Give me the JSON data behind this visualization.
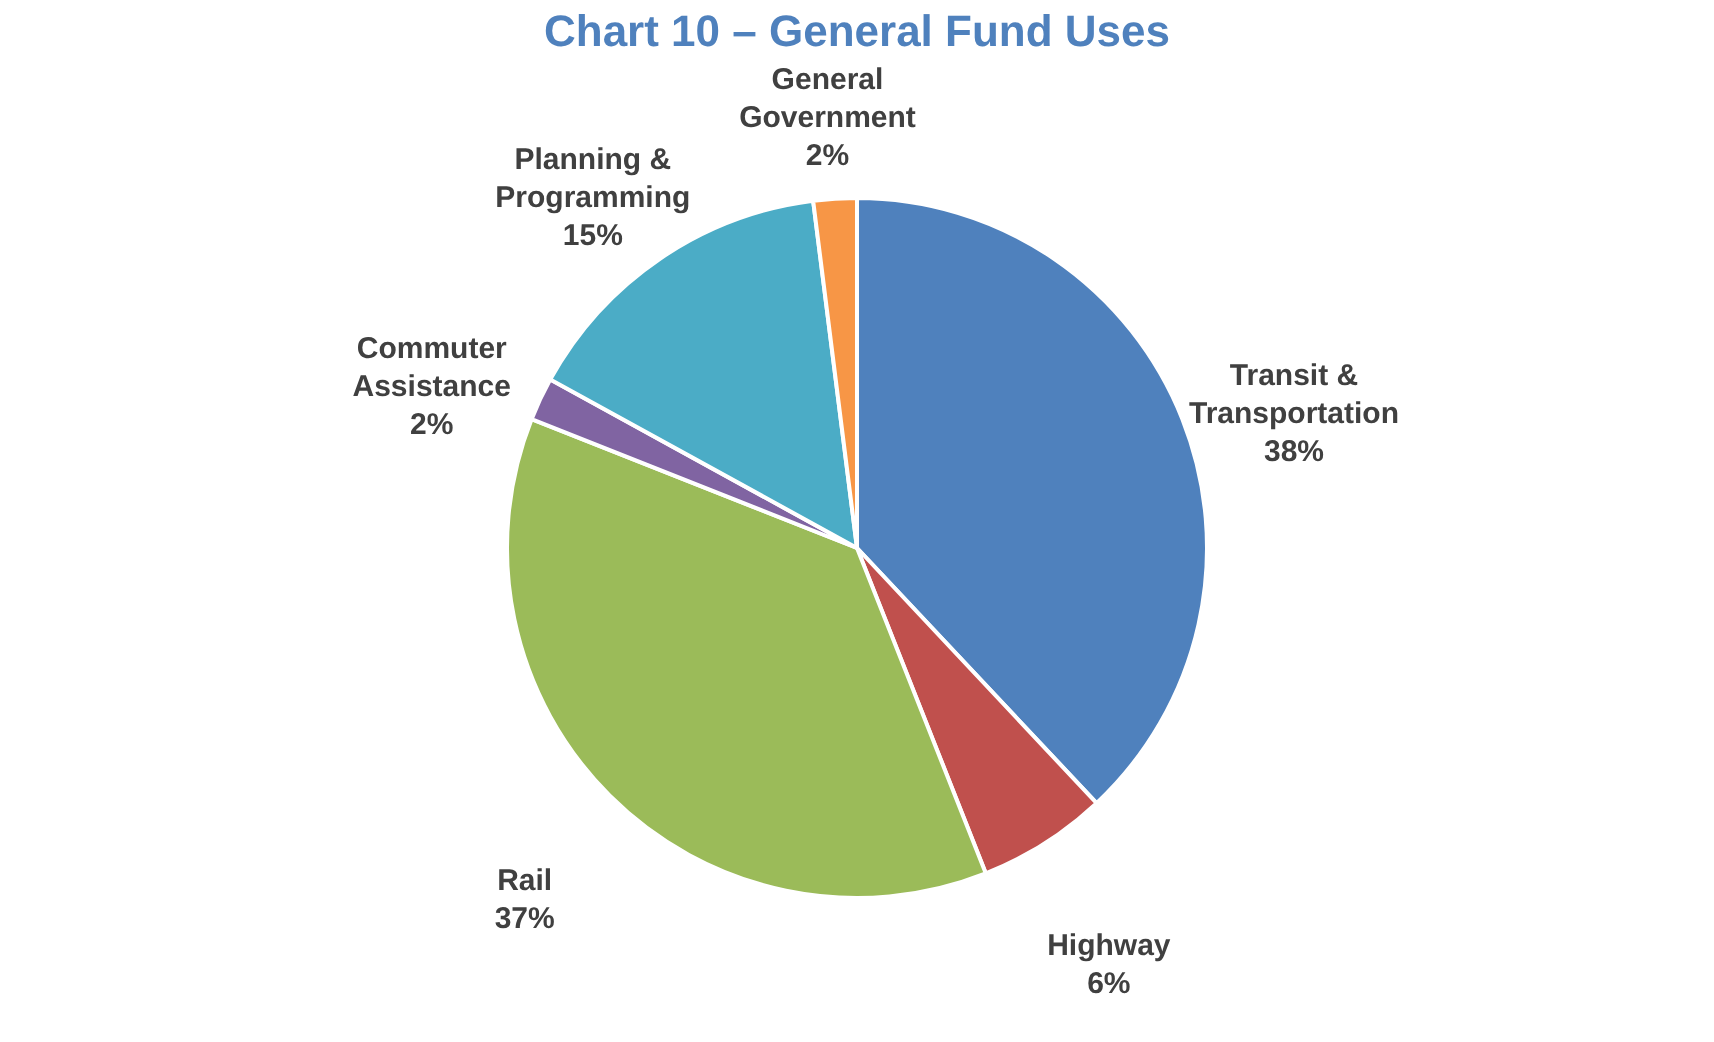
{
  "chart_data": {
    "type": "pie",
    "title": "Chart 10 – General Fund Uses",
    "categories": [
      "Transit & Transportation",
      "Highway",
      "Rail",
      "Commuter Assistance",
      "Planning & Programming",
      "General Government"
    ],
    "values": [
      38,
      6,
      37,
      2,
      15,
      2
    ],
    "colors": [
      "#4f81bd",
      "#c0504d",
      "#9bbb59",
      "#8064a2",
      "#4bacc6",
      "#f79646"
    ],
    "value_labels": [
      "38%",
      "6%",
      "37%",
      "2%",
      "15%",
      "2%"
    ]
  }
}
